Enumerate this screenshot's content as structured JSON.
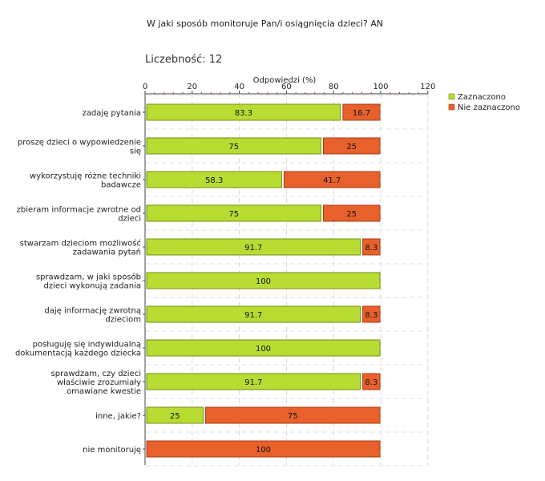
{
  "title": "W jaki sposób monitoruje Pan/i osiągnięcia dzieci?  AN",
  "count_label": "Liczebność:",
  "count_value": "12",
  "chart_data": {
    "type": "bar",
    "orientation": "horizontal",
    "stacked": true,
    "xlabel": "Odpowiedzi (%)",
    "xlim": [
      0,
      120
    ],
    "xticks": [
      0,
      20,
      40,
      60,
      80,
      100,
      120
    ],
    "grid": true,
    "legend_position": "top-right",
    "categories": [
      [
        "zadaję pytania"
      ],
      [
        "proszę dzieci o wypowiedzenie",
        "się"
      ],
      [
        "wykorzystuję różne techniki",
        "badawcze"
      ],
      [
        "zbieram informacje zwrotne od",
        "dzieci"
      ],
      [
        "stwarzam dzieciom możliwość",
        "zadawania pytań"
      ],
      [
        "sprawdzam, w jaki sposób",
        "dzieci wykonują zadania"
      ],
      [
        "daję informację zwrotną",
        "dzieciom"
      ],
      [
        "posługuję się indywidualną",
        "dokumentacją każdego dziecka"
      ],
      [
        "sprawdzam, czy dzieci",
        "właściwie zrozumiały",
        "omawiane kwestie"
      ],
      [
        "inne, jakie?"
      ],
      [
        "nie monitoruję"
      ]
    ],
    "series": [
      {
        "name": "Zaznaczono",
        "color": "#b8dc32",
        "stroke": "#6f8f10",
        "values": [
          83.3,
          75,
          58.3,
          75,
          91.7,
          100,
          91.7,
          100,
          91.7,
          25,
          0
        ]
      },
      {
        "name": "Nie zaznaczono",
        "color": "#e8612c",
        "stroke": "#a83a12",
        "values": [
          16.7,
          25,
          41.7,
          25,
          8.3,
          0,
          8.3,
          0,
          8.3,
          75,
          100
        ]
      }
    ]
  }
}
